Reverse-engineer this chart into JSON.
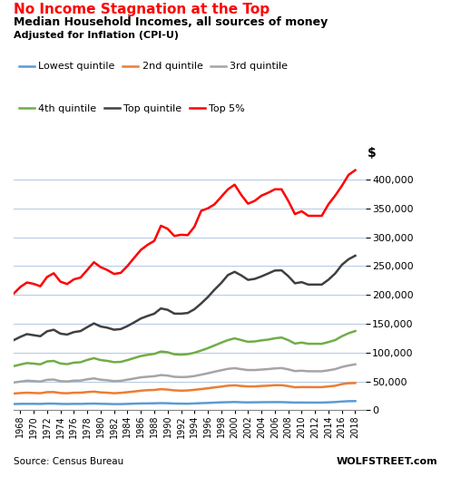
{
  "title_red": "No Income Stagnation at the Top",
  "title_black": "Median Household Incomes, all sources of money",
  "subtitle": "Adjusted for Inflation (CPI-U)",
  "source": "Source: Census Bureau",
  "watermark": "WOLFSTREET.com",
  "years": [
    1967,
    1968,
    1969,
    1970,
    1971,
    1972,
    1973,
    1974,
    1975,
    1976,
    1977,
    1978,
    1979,
    1980,
    1981,
    1982,
    1983,
    1984,
    1985,
    1986,
    1987,
    1988,
    1989,
    1990,
    1991,
    1992,
    1993,
    1994,
    1995,
    1996,
    1997,
    1998,
    1999,
    2000,
    2001,
    2002,
    2003,
    2004,
    2005,
    2006,
    2007,
    2008,
    2009,
    2010,
    2011,
    2012,
    2013,
    2014,
    2015,
    2016,
    2017,
    2018
  ],
  "lowest_quintile": [
    10673,
    11045,
    11072,
    11085,
    10913,
    11481,
    11431,
    10957,
    10778,
    11055,
    10958,
    11287,
    11470,
    11145,
    10939,
    10597,
    10646,
    11001,
    11389,
    11689,
    11843,
    11999,
    12337,
    12069,
    11572,
    11388,
    11288,
    11744,
    12255,
    12621,
    13127,
    13623,
    13920,
    14275,
    13774,
    13587,
    13722,
    13891,
    14000,
    14063,
    14026,
    13656,
    13244,
    13354,
    13250,
    13250,
    13250,
    13680,
    14172,
    15057,
    15668,
    15786
  ],
  "second_quintile": [
    28900,
    29785,
    30339,
    29921,
    29519,
    31350,
    31505,
    29816,
    29421,
    30294,
    30381,
    31502,
    32274,
    30940,
    30315,
    29494,
    30132,
    31253,
    32468,
    33882,
    34724,
    35173,
    36527,
    35724,
    34440,
    33873,
    34278,
    35375,
    36671,
    38014,
    39607,
    40955,
    42475,
    43274,
    41994,
    41165,
    41248,
    42044,
    42558,
    43413,
    43393,
    41789,
    39748,
    40165,
    40077,
    40077,
    40077,
    41171,
    42372,
    45254,
    46763,
    47107
  ],
  "third_quintile": [
    48000,
    49614,
    51185,
    50555,
    49753,
    52680,
    53183,
    50442,
    49791,
    51247,
    51427,
    53600,
    55166,
    52908,
    51956,
    50498,
    51000,
    52906,
    54965,
    57020,
    58048,
    58942,
    60936,
    60028,
    57958,
    57434,
    57780,
    59290,
    61568,
    64036,
    66755,
    69254,
    71693,
    72900,
    71113,
    69627,
    69621,
    70479,
    71293,
    72456,
    73113,
    70800,
    67916,
    68487,
    67534,
    67534,
    67534,
    69174,
    71178,
    74919,
    77601,
    79542
  ],
  "fourth_quintile": [
    76400,
    79143,
    81761,
    80813,
    79566,
    84574,
    85461,
    81027,
    79830,
    82442,
    83148,
    87165,
    90285,
    86894,
    85547,
    83266,
    83756,
    86881,
    90436,
    93940,
    96012,
    97655,
    101780,
    100522,
    96922,
    96262,
    97208,
    99673,
    103476,
    107617,
    112300,
    117090,
    121503,
    124629,
    121590,
    118588,
    119254,
    121063,
    122427,
    124671,
    126031,
    121521,
    115553,
    117266,
    115146,
    115146,
    115146,
    118150,
    121582,
    128186,
    133445,
    137254
  ],
  "top_quintile": [
    121300,
    127124,
    131944,
    130071,
    128271,
    136782,
    139500,
    132736,
    131161,
    135399,
    137196,
    144012,
    150501,
    145156,
    143042,
    139574,
    140655,
    145879,
    152210,
    159019,
    163374,
    167303,
    176499,
    174028,
    167497,
    167372,
    168563,
    175087,
    185048,
    196129,
    209007,
    220597,
    234371,
    239950,
    233616,
    225979,
    227680,
    232000,
    237000,
    242175,
    242491,
    232474,
    220064,
    222000,
    217823,
    217823,
    217823,
    226291,
    237033,
    252030,
    261755,
    267915
  ],
  "top_5pct": [
    201855,
    213544,
    221424,
    219082,
    214920,
    230966,
    237466,
    222804,
    218773,
    226820,
    229953,
    243120,
    256584,
    248023,
    243000,
    236272,
    238073,
    250067,
    264118,
    277885,
    286706,
    293530,
    319789,
    314498,
    302083,
    304155,
    303524,
    318219,
    345614,
    350000,
    357000,
    370000,
    383000,
    391000,
    373000,
    358000,
    363000,
    372000,
    377000,
    383000,
    383000,
    363000,
    340000,
    345000,
    337000,
    337000,
    337000,
    357000,
    372000,
    389000,
    408000,
    416100
  ],
  "series_colors": {
    "lowest_quintile": "#5b9bd5",
    "second_quintile": "#ed7d31",
    "third_quintile": "#a5a5a5",
    "fourth_quintile": "#70ad47",
    "top_quintile": "#404040",
    "top_5pct": "#ff0000"
  },
  "ylim": [
    0,
    430000
  ],
  "yticks": [
    0,
    50000,
    100000,
    150000,
    200000,
    250000,
    300000,
    350000,
    400000
  ],
  "background_color": "#ffffff",
  "grid_color": "#b8cce4"
}
